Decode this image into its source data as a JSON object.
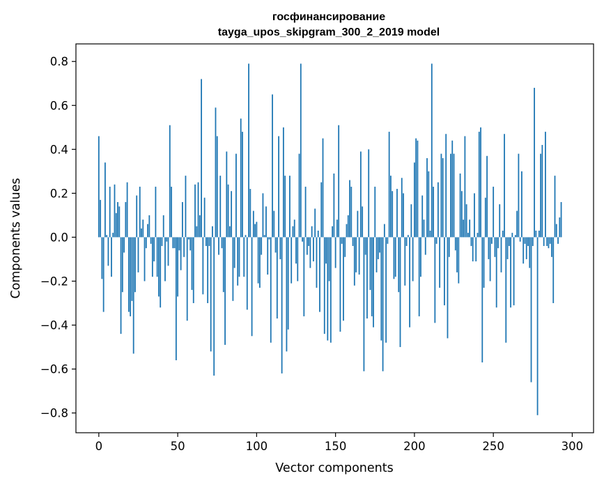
{
  "chart_data": {
    "type": "bar",
    "title_line1": "госфинансирование",
    "title_line2": "tayga_upos_skipgram_300_2_2019 model",
    "xlabel": "Vector components",
    "ylabel": "Components values",
    "xlim": [
      -14.5,
      313.5
    ],
    "ylim": [
      -0.89,
      0.88
    ],
    "xticks": [
      0,
      50,
      100,
      150,
      200,
      250,
      300
    ],
    "xtick_labels": [
      "0",
      "50",
      "100",
      "150",
      "200",
      "250",
      "300"
    ],
    "yticks": [
      -0.8,
      -0.6,
      -0.4,
      -0.2,
      0.0,
      0.2,
      0.4,
      0.6,
      0.8
    ],
    "ytick_labels": [
      "−0.8",
      "−0.6",
      "−0.4",
      "−0.2",
      "0.0",
      "0.2",
      "0.4",
      "0.6",
      "0.8"
    ],
    "grid": false,
    "bar_color": "#1f77b4",
    "x_start": 0,
    "values": [
      0.46,
      0.17,
      -0.19,
      -0.34,
      0.34,
      0.01,
      -0.13,
      0.23,
      -0.18,
      0.02,
      0.24,
      0.11,
      0.16,
      0.14,
      -0.44,
      -0.25,
      -0.07,
      0.16,
      0.25,
      -0.34,
      -0.36,
      -0.29,
      -0.53,
      -0.25,
      0.19,
      -0.16,
      0.23,
      0.04,
      0.08,
      -0.2,
      -0.05,
      0.06,
      0.1,
      -0.03,
      -0.18,
      -0.11,
      0.23,
      -0.18,
      -0.27,
      -0.32,
      -0.04,
      0.1,
      -0.2,
      -0.02,
      -0.13,
      0.51,
      0.23,
      -0.05,
      -0.05,
      -0.56,
      -0.27,
      -0.06,
      -0.15,
      0.16,
      -0.09,
      0.28,
      -0.38,
      -0.01,
      -0.06,
      -0.24,
      -0.3,
      0.24,
      0.05,
      0.25,
      0.1,
      0.72,
      -0.26,
      0.18,
      -0.04,
      -0.3,
      -0.04,
      -0.52,
      0.05,
      -0.63,
      0.59,
      0.46,
      -0.08,
      0.28,
      -0.05,
      -0.25,
      -0.49,
      0.39,
      0.24,
      0.05,
      0.21,
      -0.29,
      -0.14,
      0.38,
      -0.22,
      -0.18,
      0.54,
      0.48,
      -0.18,
      0.01,
      -0.33,
      0.79,
      0.22,
      -0.45,
      0.12,
      0.06,
      0.07,
      -0.21,
      -0.23,
      -0.08,
      0.2,
      0.01,
      0.14,
      -0.17,
      -0.01,
      -0.48,
      0.65,
      0.12,
      -0.07,
      -0.37,
      0.46,
      -0.1,
      -0.62,
      0.5,
      0.28,
      -0.52,
      -0.42,
      0.28,
      -0.21,
      0.05,
      0.08,
      -0.12,
      -0.2,
      0.38,
      0.79,
      -0.02,
      -0.36,
      0.23,
      -0.08,
      -0.04,
      -0.14,
      0.05,
      -0.11,
      0.13,
      -0.23,
      0.03,
      -0.34,
      0.25,
      0.45,
      -0.44,
      -0.12,
      -0.47,
      -0.2,
      -0.48,
      0.05,
      0.29,
      -0.14,
      0.08,
      0.51,
      -0.43,
      -0.03,
      -0.38,
      -0.09,
      0.06,
      0.1,
      0.26,
      0.23,
      -0.04,
      -0.22,
      -0.16,
      0.12,
      -0.17,
      0.39,
      0.14,
      -0.61,
      -0.08,
      -0.37,
      0.4,
      -0.24,
      -0.36,
      -0.41,
      0.23,
      -0.16,
      -0.1,
      -0.07,
      -0.47,
      -0.61,
      0.06,
      -0.48,
      -0.03,
      0.48,
      0.28,
      0.21,
      -0.19,
      -0.18,
      0.22,
      -0.25,
      -0.5,
      0.27,
      0.2,
      -0.22,
      -0.04,
      0.01,
      -0.41,
      0.15,
      -0.2,
      0.34,
      0.45,
      0.44,
      -0.36,
      -0.18,
      0.19,
      0.08,
      -0.08,
      0.36,
      0.3,
      0.03,
      0.79,
      0.23,
      -0.39,
      -0.03,
      0.25,
      -0.23,
      0.38,
      0.36,
      -0.31,
      0.47,
      -0.46,
      -0.09,
      0.38,
      0.44,
      0.38,
      -0.06,
      -0.16,
      -0.21,
      0.29,
      0.21,
      0.08,
      0.46,
      0.15,
      0.02,
      0.08,
      -0.04,
      -0.11,
      0.2,
      -0.11,
      0.02,
      0.48,
      0.5,
      -0.57,
      -0.23,
      0.18,
      0.37,
      -0.1,
      -0.2,
      -0.03,
      0.23,
      -0.09,
      -0.32,
      -0.05,
      0.15,
      -0.16,
      0.03,
      0.47,
      -0.48,
      -0.1,
      -0.04,
      -0.32,
      0.02,
      -0.31,
      0.01,
      0.12,
      0.38,
      -0.02,
      0.3,
      -0.12,
      -0.03,
      -0.1,
      -0.04,
      -0.14,
      -0.66,
      -0.04,
      0.68,
      0.03,
      -0.81,
      0.03,
      0.38,
      0.42,
      -0.04,
      0.48,
      -0.04,
      -0.05,
      -0.03,
      -0.09,
      -0.3,
      0.28,
      0.06,
      -0.03,
      0.09,
      0.16
    ]
  }
}
